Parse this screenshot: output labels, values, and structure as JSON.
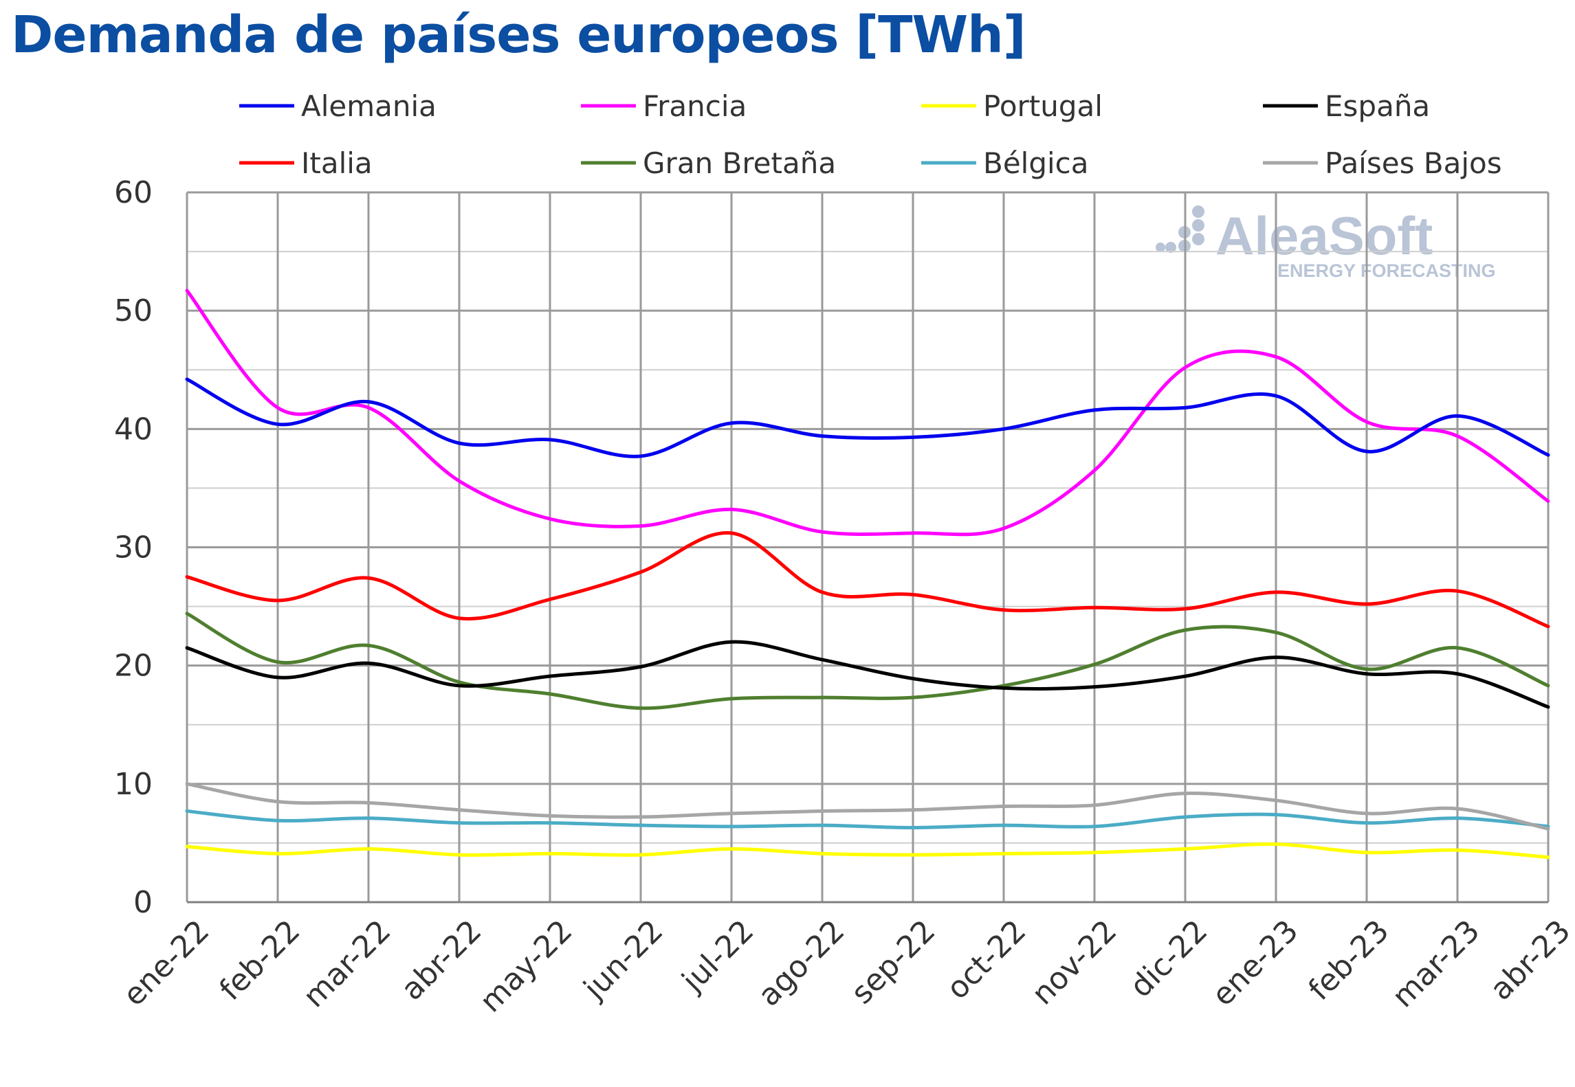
{
  "chart_data": {
    "type": "line",
    "title": "Demanda de países europeos [TWh]",
    "xlabel": "",
    "ylabel": "",
    "ylim": [
      0,
      60
    ],
    "yticks": [
      "0",
      "10",
      "20",
      "30",
      "40",
      "50",
      "60"
    ],
    "grid": true,
    "legend_position": "top",
    "categories": [
      "ene-22",
      "feb-22",
      "mar-22",
      "abr-22",
      "may-22",
      "jun-22",
      "jul-22",
      "ago-22",
      "sep-22",
      "oct-22",
      "nov-22",
      "dic-22",
      "ene-23",
      "feb-23",
      "mar-23",
      "abr-23"
    ],
    "series": [
      {
        "name": "Alemania",
        "color": "#0000ee",
        "values": [
          44.2,
          40.4,
          42.3,
          38.8,
          39.1,
          37.7,
          40.5,
          39.4,
          39.3,
          40.0,
          41.6,
          41.8,
          42.8,
          38.1,
          41.1,
          37.8
        ]
      },
      {
        "name": "Francia",
        "color": "#ff00ff",
        "values": [
          51.7,
          41.8,
          41.8,
          35.6,
          32.4,
          31.8,
          33.2,
          31.3,
          31.2,
          31.6,
          36.5,
          45.2,
          46.1,
          40.6,
          39.4,
          33.9
        ]
      },
      {
        "name": "Portugal",
        "color": "#ffff00",
        "values": [
          4.7,
          4.1,
          4.5,
          4.0,
          4.1,
          4.0,
          4.5,
          4.1,
          4.0,
          4.1,
          4.2,
          4.5,
          4.9,
          4.2,
          4.4,
          3.8
        ]
      },
      {
        "name": "España",
        "color": "#000000",
        "values": [
          21.5,
          19.0,
          20.2,
          18.3,
          19.1,
          19.9,
          22.0,
          20.5,
          18.9,
          18.1,
          18.2,
          19.1,
          20.7,
          19.3,
          19.3,
          16.5
        ]
      },
      {
        "name": "Italia",
        "color": "#ff0000",
        "values": [
          27.5,
          25.5,
          27.4,
          24.0,
          25.6,
          27.9,
          31.2,
          26.2,
          26.0,
          24.7,
          24.9,
          24.8,
          26.2,
          25.2,
          26.3,
          23.3
        ]
      },
      {
        "name": "Gran Bretaña",
        "color": "#4f7f2f",
        "values": [
          24.4,
          20.3,
          21.7,
          18.6,
          17.6,
          16.4,
          17.2,
          17.3,
          17.3,
          18.3,
          20.1,
          23.0,
          22.8,
          19.7,
          21.5,
          18.3
        ]
      },
      {
        "name": "Bélgica",
        "color": "#4bacc6",
        "values": [
          7.7,
          6.9,
          7.1,
          6.7,
          6.7,
          6.5,
          6.4,
          6.5,
          6.3,
          6.5,
          6.4,
          7.2,
          7.4,
          6.7,
          7.1,
          6.4
        ]
      },
      {
        "name": "Países Bajos",
        "color": "#a6a6a6",
        "values": [
          10.0,
          8.5,
          8.4,
          7.8,
          7.3,
          7.2,
          7.5,
          7.7,
          7.8,
          8.1,
          8.2,
          9.2,
          8.6,
          7.5,
          7.9,
          6.2
        ]
      }
    ]
  },
  "watermark": {
    "brand": "AleaSoft",
    "tagline": "ENERGY FORECASTING",
    "color": "#b9c4d6"
  }
}
